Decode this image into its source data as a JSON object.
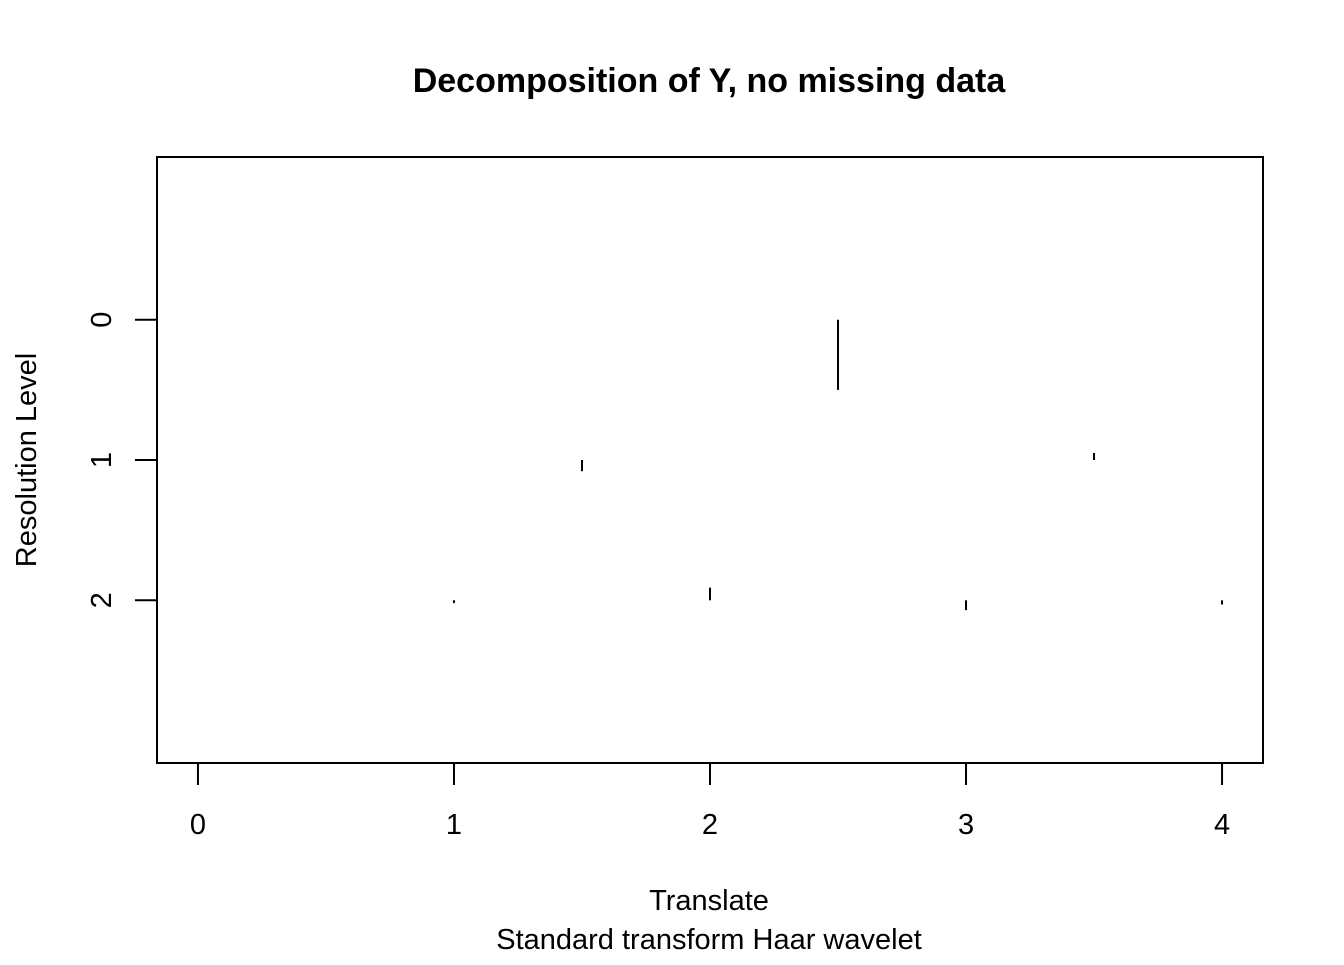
{
  "chart_data": {
    "type": "scatter",
    "title": "Decomposition of Y, no missing data",
    "xlabel": "Translate",
    "sub": "Standard transform Haar wavelet",
    "ylabel": "Resolution Level",
    "xlim": [
      -0.16,
      4.16
    ],
    "ylim": [
      3.16,
      -1.16
    ],
    "x_ticks": [
      "0",
      "1",
      "2",
      "3",
      "4"
    ],
    "y_ticks": [
      "0",
      "1",
      "2"
    ],
    "legend": "none",
    "grid": false,
    "mark_style": "vertical segment from level baseline, length proportional to coefficient",
    "coefficient_scale": "segment length in resolution-level units",
    "levels": [
      {
        "level": 0,
        "coefficients": [
          {
            "x": 2.5,
            "d": 0.5
          }
        ]
      },
      {
        "level": 1,
        "coefficients": [
          {
            "x": 1.5,
            "d": 0.08
          },
          {
            "x": 3.5,
            "d": -0.05
          }
        ]
      },
      {
        "level": 2,
        "coefficients": [
          {
            "x": 1,
            "d": 0.02
          },
          {
            "x": 2,
            "d": -0.09
          },
          {
            "x": 3,
            "d": 0.07
          },
          {
            "x": 4,
            "d": 0.03
          }
        ]
      }
    ],
    "color": "#000000"
  }
}
